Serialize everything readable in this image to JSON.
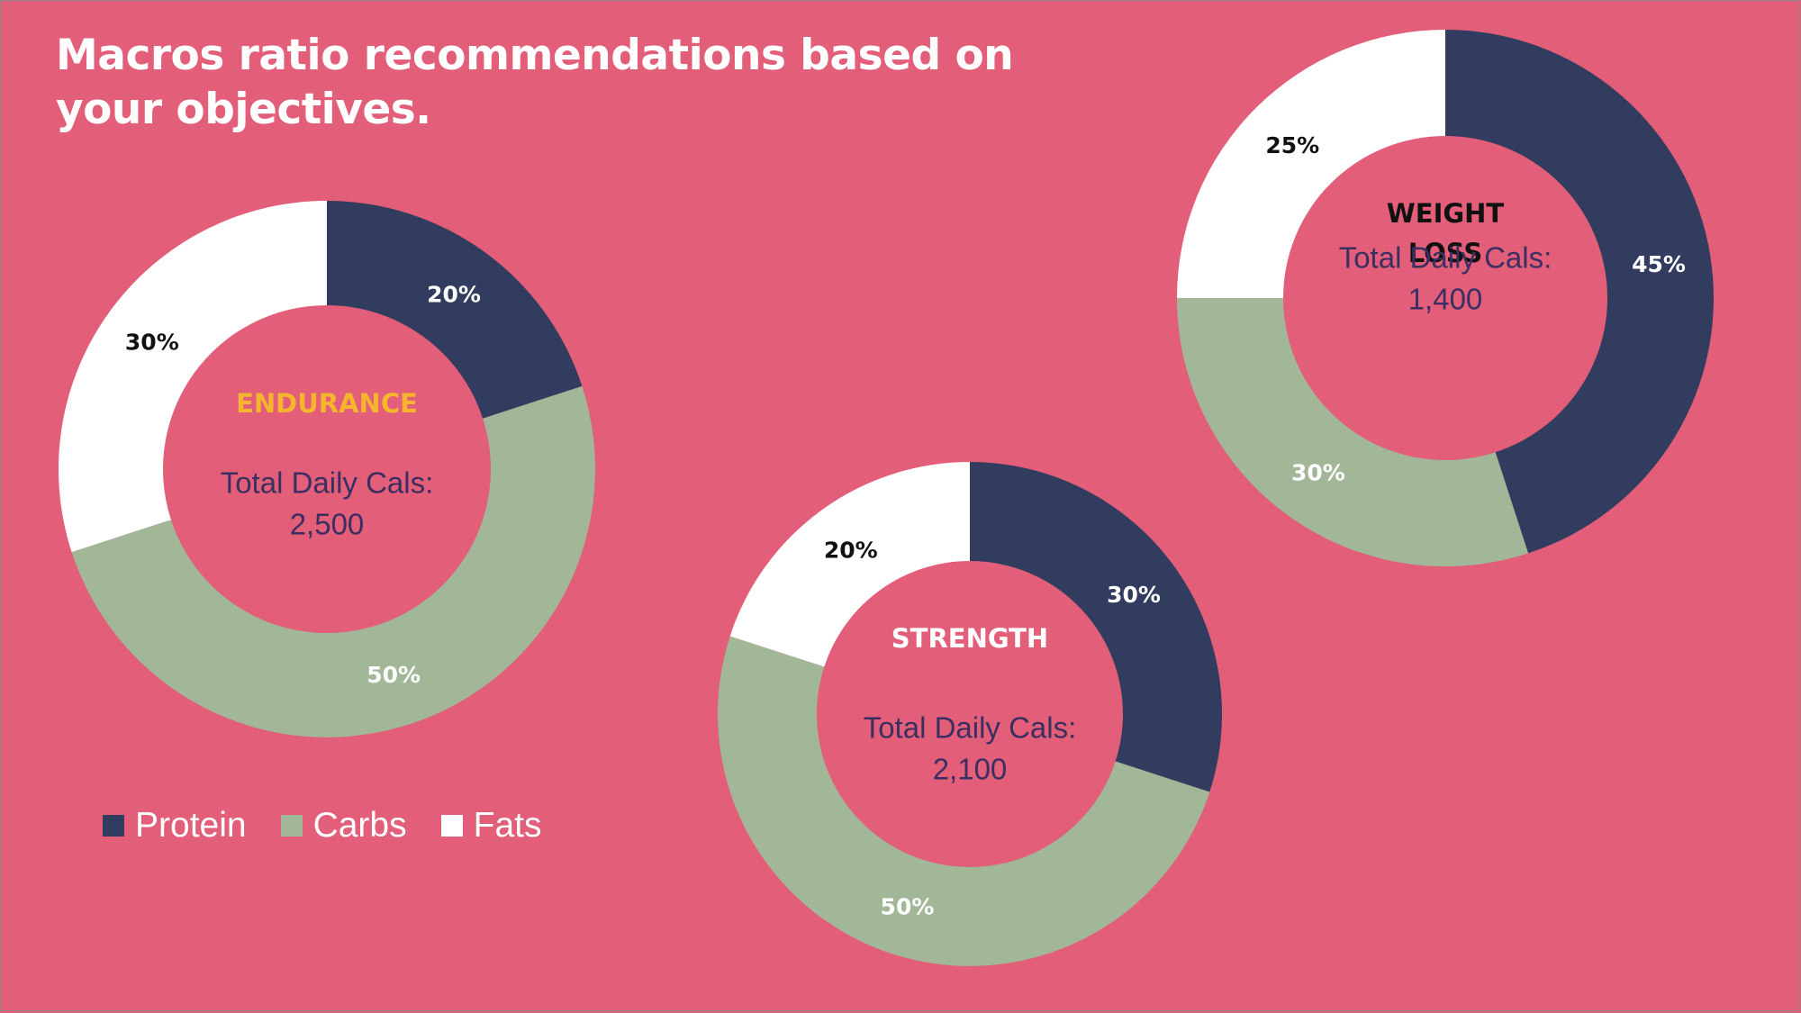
{
  "title": "Macros ratio recommendations based on your objectives.",
  "colors": {
    "background": "#e25e79",
    "protein": "#323c5f",
    "carbs": "#a2b698",
    "fats": "#ffffff",
    "endurance_label": "#f5b52e",
    "strength_label": "#ffffff",
    "weight_loss_label": "#111111",
    "calorie_text": "#3b2f62"
  },
  "legend": [
    {
      "name": "Protein",
      "color": "#323c5f"
    },
    {
      "name": "Carbs",
      "color": "#a2b698"
    },
    {
      "name": "Fats",
      "color": "#ffffff"
    }
  ],
  "chart_data": [
    {
      "type": "pie",
      "objective": "ENDURANCE",
      "calorie_label": "Total Daily Cals:",
      "calories": "2,500",
      "categories": [
        "Protein",
        "Carbs",
        "Fats"
      ],
      "values": [
        20,
        50,
        30
      ],
      "data_labels": [
        "20%",
        "50%",
        "30%"
      ]
    },
    {
      "type": "pie",
      "objective": "STRENGTH",
      "calorie_label": "Total Daily Cals:",
      "calories": "2,100",
      "categories": [
        "Protein",
        "Carbs",
        "Fats"
      ],
      "values": [
        30,
        50,
        20
      ],
      "data_labels": [
        "30%",
        "50%",
        "20%"
      ]
    },
    {
      "type": "pie",
      "objective": "WEIGHT LOSS",
      "calorie_label": "Total Daily Cals:",
      "calories": "1,400",
      "categories": [
        "Protein",
        "Carbs",
        "Fats"
      ],
      "values": [
        45,
        30,
        25
      ],
      "data_labels": [
        "45%",
        "30%",
        "25%"
      ]
    }
  ]
}
